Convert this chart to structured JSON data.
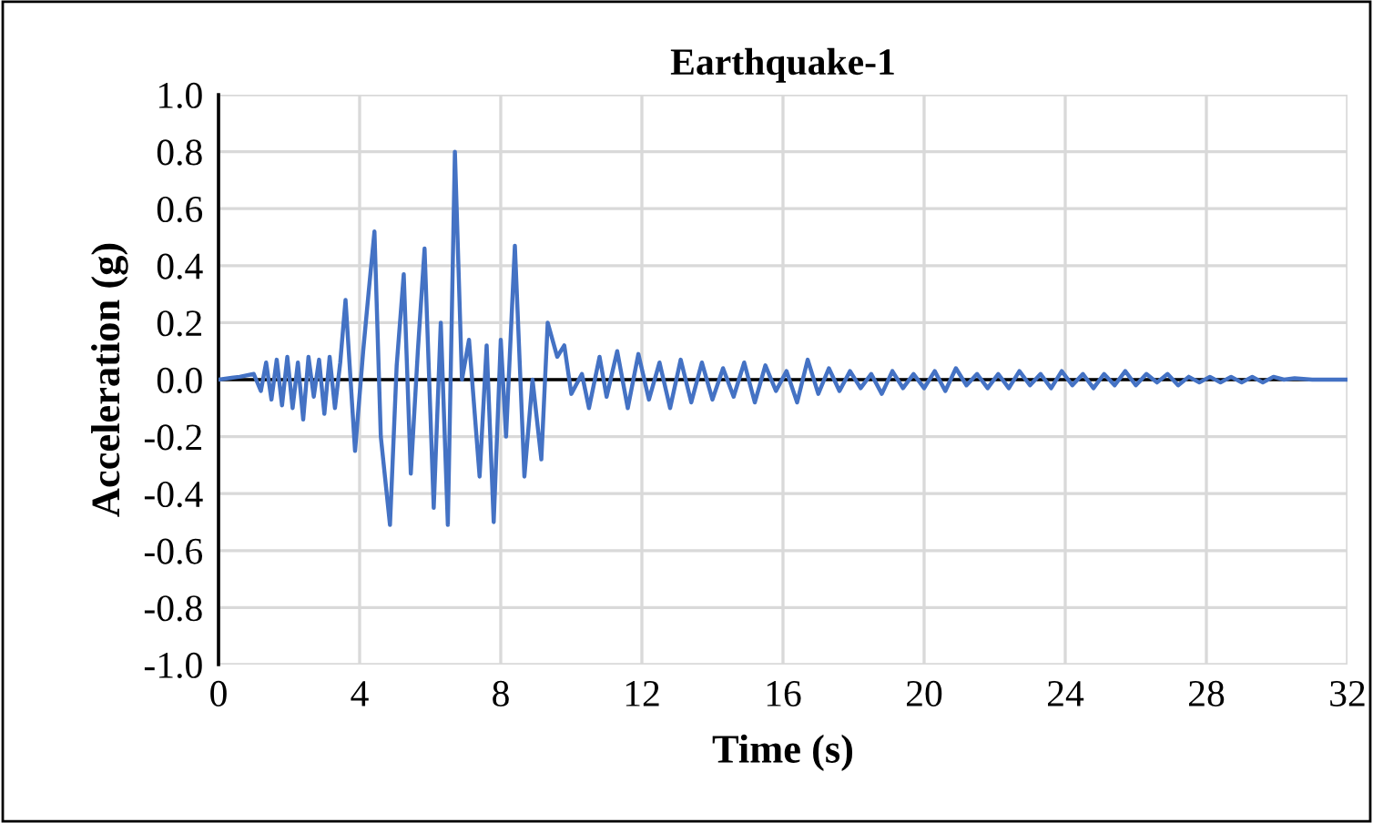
{
  "chart_data": {
    "type": "line",
    "title": "Earthquake-1",
    "xlabel": "Time (s)",
    "ylabel": "Acceleration (g)",
    "series": [
      {
        "color": "#4472c4",
        "x": [
          0,
          0.6,
          1.0,
          1.2,
          1.35,
          1.5,
          1.65,
          1.8,
          1.95,
          2.1,
          2.25,
          2.4,
          2.55,
          2.7,
          2.85,
          3.0,
          3.15,
          3.3,
          3.45,
          3.6,
          3.87,
          4.1,
          4.25,
          4.42,
          4.6,
          4.86,
          5.05,
          5.25,
          5.45,
          5.65,
          5.84,
          6.1,
          6.3,
          6.5,
          6.7,
          6.9,
          7.1,
          7.4,
          7.6,
          7.8,
          8.0,
          8.15,
          8.4,
          8.67,
          8.9,
          9.15,
          9.33,
          9.6,
          9.8,
          10.0,
          10.3,
          10.5,
          10.8,
          11.0,
          11.3,
          11.6,
          11.9,
          12.2,
          12.5,
          12.8,
          13.1,
          13.4,
          13.7,
          14.0,
          14.3,
          14.6,
          14.9,
          15.2,
          15.5,
          15.8,
          16.1,
          16.4,
          16.7,
          17.0,
          17.3,
          17.6,
          17.9,
          18.2,
          18.5,
          18.8,
          19.1,
          19.4,
          19.7,
          20.0,
          20.3,
          20.6,
          20.9,
          21.2,
          21.5,
          21.8,
          22.1,
          22.4,
          22.7,
          23.0,
          23.3,
          23.6,
          23.9,
          24.2,
          24.5,
          24.8,
          25.1,
          25.4,
          25.7,
          26.0,
          26.3,
          26.6,
          26.9,
          27.2,
          27.5,
          27.8,
          28.1,
          28.4,
          28.7,
          29.0,
          29.3,
          29.6,
          29.9,
          30.2,
          30.5,
          31.0,
          32.0
        ],
        "values": [
          0,
          0.01,
          0.02,
          -0.04,
          0.06,
          -0.07,
          0.07,
          -0.09,
          0.08,
          -0.1,
          0.06,
          -0.14,
          0.08,
          -0.06,
          0.07,
          -0.12,
          0.08,
          -0.1,
          0.06,
          0.28,
          -0.25,
          0.1,
          0.3,
          0.52,
          -0.2,
          -0.51,
          0.05,
          0.37,
          -0.33,
          0.1,
          0.46,
          -0.45,
          0.2,
          -0.51,
          0.8,
          0.0,
          0.14,
          -0.34,
          0.12,
          -0.5,
          0.14,
          -0.2,
          0.47,
          -0.34,
          0.0,
          -0.28,
          0.2,
          0.08,
          0.12,
          -0.05,
          0.02,
          -0.1,
          0.08,
          -0.06,
          0.1,
          -0.1,
          0.09,
          -0.07,
          0.06,
          -0.1,
          0.07,
          -0.08,
          0.06,
          -0.07,
          0.04,
          -0.06,
          0.06,
          -0.08,
          0.05,
          -0.04,
          0.03,
          -0.08,
          0.07,
          -0.05,
          0.04,
          -0.04,
          0.03,
          -0.03,
          0.02,
          -0.05,
          0.03,
          -0.03,
          0.02,
          -0.03,
          0.03,
          -0.04,
          0.04,
          -0.02,
          0.02,
          -0.03,
          0.02,
          -0.03,
          0.03,
          -0.02,
          0.02,
          -0.03,
          0.03,
          -0.02,
          0.02,
          -0.03,
          0.02,
          -0.02,
          0.03,
          -0.02,
          0.02,
          -0.01,
          0.02,
          -0.02,
          0.01,
          -0.01,
          0.01,
          -0.01,
          0.01,
          -0.01,
          0.01,
          -0.01,
          0.01,
          0,
          0.005,
          0,
          0
        ]
      }
    ],
    "xlim": [
      0,
      32
    ],
    "xticks": [
      0,
      4,
      8,
      12,
      16,
      20,
      24,
      28,
      32
    ],
    "ylim": [
      -1.0,
      1.0
    ],
    "yticks": [
      {
        "value": -1.0,
        "label": "-1.0"
      },
      {
        "value": -0.8,
        "label": "-0.8"
      },
      {
        "value": -0.6,
        "label": "-0.6"
      },
      {
        "value": -0.4,
        "label": "-0.4"
      },
      {
        "value": -0.2,
        "label": "-0.2"
      },
      {
        "value": 0.0,
        "label": "0.0"
      },
      {
        "value": 0.2,
        "label": "0.2"
      },
      {
        "value": 0.4,
        "label": "0.4"
      },
      {
        "value": 0.6,
        "label": "0.6"
      },
      {
        "value": 0.8,
        "label": "0.8"
      },
      {
        "value": 1.0,
        "label": "1.0"
      }
    ],
    "grid": true,
    "marker": "none",
    "line_style": "solid"
  }
}
